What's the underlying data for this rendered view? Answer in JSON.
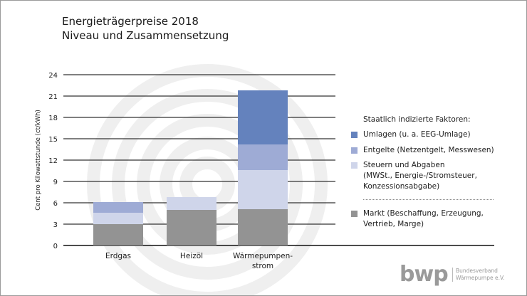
{
  "chart_data": {
    "type": "bar",
    "stacked": true,
    "title": "Energieträgerpreise 2018",
    "subtitle": "Niveau und Zusammensetzung",
    "ylabel": "Cent pro Kilowattstunde (ct/kWh)",
    "xlabel": "",
    "ylim": [
      0,
      24
    ],
    "yticks": [
      0,
      3,
      6,
      9,
      12,
      15,
      18,
      21,
      24
    ],
    "grid": true,
    "legend_position": "right",
    "categories": [
      "Erdgas",
      "Heizöl",
      "Wärmepumpen-\nstrom"
    ],
    "legend_title": "Staatlich indizierte Faktoren:",
    "series": [
      {
        "name": "Markt (Beschaffung, Erzeugung, Vertrieb, Marge)",
        "color": "#939393",
        "values": [
          3.0,
          5.0,
          5.1
        ]
      },
      {
        "name": "Steuern und Abgaben (MWSt., Energie-/Stromsteuer, Konzessionsabgabe)",
        "color": "#cfd5ea",
        "values": [
          1.6,
          1.8,
          5.5
        ]
      },
      {
        "name": "Entgelte (Netzentgelt, Messwesen)",
        "color": "#9eabd5",
        "values": [
          1.5,
          0,
          3.6
        ]
      },
      {
        "name": "Umlagen (u. a. EEG-Umlage)",
        "color": "#6482bd",
        "values": [
          0,
          0,
          7.6
        ]
      }
    ]
  },
  "legend": {
    "title": "Staatlich indizierte Faktoren:",
    "umlagen": "Umlagen (u. a. EEG-Umlage)",
    "entgelte": "Entgelte (Netzentgelt, Messwesen)",
    "steuern": [
      "Steuern und Abgaben",
      "(MWSt., Energie-/Stromsteuer,",
      "Konzessionsabgabe)"
    ],
    "markt": [
      "Markt (Beschaffung, Erzeugung,",
      "Vertrieb, Marge)"
    ]
  },
  "logo": {
    "mark": "bwp",
    "line1": "Bundesverband",
    "line2": "Wärmepumpe e.V."
  }
}
